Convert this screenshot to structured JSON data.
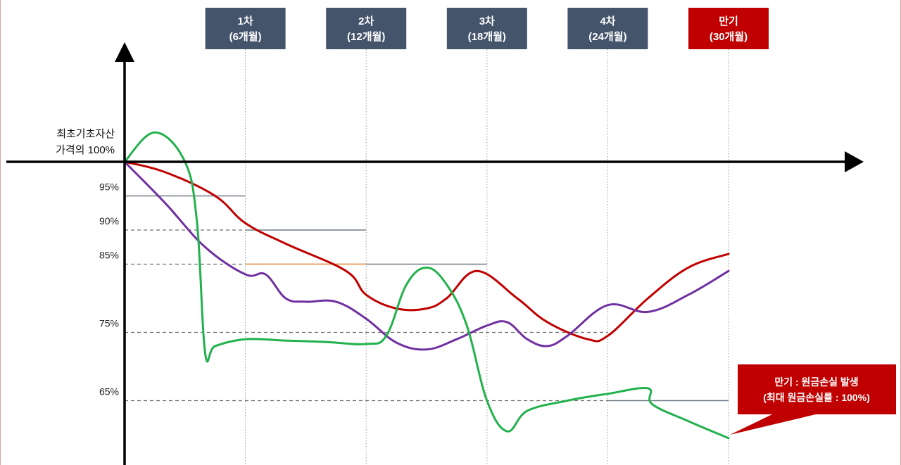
{
  "chart_data": {
    "type": "line",
    "y_unit": "%",
    "ylim": [
      61,
      104
    ],
    "x_range": [
      0,
      35
    ],
    "origin_label_lines": [
      "최초기초자산",
      "가격의 100%"
    ],
    "observation_dates": [
      {
        "line1": "1차",
        "line2": "(6개월)",
        "month": 6,
        "color": "#44546a"
      },
      {
        "line1": "2차",
        "line2": "(12개월)",
        "month": 12,
        "color": "#44546a"
      },
      {
        "line1": "3차",
        "line2": "(18개월)",
        "month": 18,
        "color": "#44546a"
      },
      {
        "line1": "4차",
        "line2": "(24개월)",
        "month": 24,
        "color": "#44546a"
      },
      {
        "line1": "만기",
        "line2": "(30개월)",
        "month": 30,
        "color": "#c00000"
      }
    ],
    "barrier_ticks": [
      "95%",
      "90%",
      "85%",
      "75%",
      "65%"
    ],
    "barrier_levels": [
      {
        "value": 95,
        "from": 0,
        "to": 6,
        "dash_to": 0
      },
      {
        "value": 90,
        "from": 0,
        "to": 12,
        "dash_to": 6
      },
      {
        "value": 85,
        "from": 0,
        "to": 18,
        "dash_to": 6,
        "accent_from": 6,
        "accent_to": 12,
        "accent_color": "#f4a460"
      },
      {
        "value": 75,
        "from": 0,
        "to": 24,
        "dash_to": 24
      },
      {
        "value": 65,
        "from": 0,
        "to": 30,
        "dash_to": 24
      }
    ],
    "series": [
      {
        "color": "#c00000",
        "points": [
          [
            0,
            100
          ],
          [
            2,
            98.5
          ],
          [
            4.5,
            95
          ],
          [
            6,
            91
          ],
          [
            8,
            88
          ],
          [
            11,
            84
          ],
          [
            12,
            80.5
          ],
          [
            13.5,
            78.5
          ],
          [
            15,
            78.5
          ],
          [
            16,
            80
          ],
          [
            17.5,
            84
          ],
          [
            19.5,
            80
          ],
          [
            21,
            76.5
          ],
          [
            23,
            74
          ],
          [
            24,
            74.5
          ],
          [
            26,
            80
          ],
          [
            28,
            84.5
          ],
          [
            30,
            86.5
          ]
        ]
      },
      {
        "color": "#7030a0",
        "points": [
          [
            0,
            100
          ],
          [
            2,
            94
          ],
          [
            4,
            87.5
          ],
          [
            6,
            83.5
          ],
          [
            7,
            83.5
          ],
          [
            8,
            80
          ],
          [
            9,
            79.5
          ],
          [
            10.5,
            79.5
          ],
          [
            12,
            77
          ],
          [
            13.5,
            73.5
          ],
          [
            15,
            72.5
          ],
          [
            16.5,
            74
          ],
          [
            18,
            76
          ],
          [
            19,
            76.5
          ],
          [
            20,
            74
          ],
          [
            21,
            73
          ],
          [
            22,
            74.5
          ],
          [
            24,
            79
          ],
          [
            26,
            78
          ],
          [
            28,
            80.5
          ],
          [
            30,
            84
          ]
        ]
      },
      {
        "color": "#22b14c",
        "points": [
          [
            0,
            100
          ],
          [
            1.5,
            104.3
          ],
          [
            3,
            100
          ],
          [
            3.6,
            91
          ],
          [
            4,
            72
          ],
          [
            4.5,
            73
          ],
          [
            6,
            74
          ],
          [
            8,
            73.8
          ],
          [
            10,
            73.6
          ],
          [
            12,
            73.3
          ],
          [
            13,
            74.5
          ],
          [
            14,
            82
          ],
          [
            15,
            84.5
          ],
          [
            16,
            82
          ],
          [
            17,
            76
          ],
          [
            18,
            65
          ],
          [
            19,
            60.5
          ],
          [
            20,
            63.5
          ],
          [
            22,
            65
          ],
          [
            24,
            66
          ],
          [
            26,
            66.8
          ],
          [
            26.2,
            64.5
          ],
          [
            28,
            62
          ],
          [
            30,
            59.5
          ]
        ]
      }
    ],
    "annotation": {
      "lines": [
        "만기 : 원금손실 발생",
        "(최대 원금손실률 : 100%)"
      ],
      "color": "#c00000"
    }
  }
}
